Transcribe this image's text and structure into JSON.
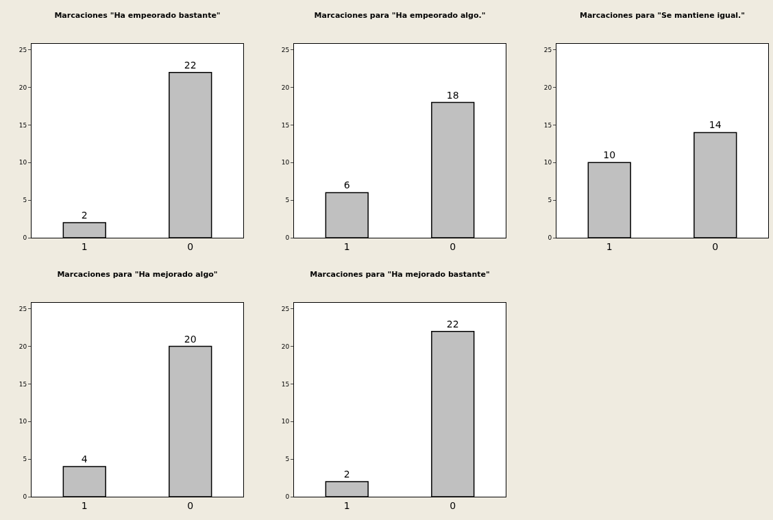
{
  "chart_data": [
    {
      "type": "bar",
      "title": "Marcaciones \"Ha empeorado bastante\"",
      "categories": [
        "1",
        "0"
      ],
      "values": [
        2,
        22
      ],
      "color": "#c0c0c0",
      "ylim": [
        0,
        25.8
      ],
      "yticks": [
        0,
        5,
        10,
        15,
        20,
        25
      ],
      "data_labels": true,
      "grid": false
    },
    {
      "type": "bar",
      "title": "Marcaciones para \"Ha empeorado algo.\"",
      "categories": [
        "1",
        "0"
      ],
      "values": [
        6,
        18
      ],
      "color": "#c0c0c0",
      "ylim": [
        0,
        25.8
      ],
      "yticks": [
        0,
        5,
        10,
        15,
        20,
        25
      ],
      "data_labels": true,
      "grid": false
    },
    {
      "type": "bar",
      "title": "Marcaciones para \"Se mantiene igual.\"",
      "categories": [
        "1",
        "0"
      ],
      "values": [
        10,
        14
      ],
      "color": "#c0c0c0",
      "ylim": [
        0,
        25.8
      ],
      "yticks": [
        0,
        5,
        10,
        15,
        20,
        25
      ],
      "data_labels": true,
      "grid": false
    },
    {
      "type": "bar",
      "title": "Marcaciones para \"Ha mejorado algo\"",
      "categories": [
        "1",
        "0"
      ],
      "values": [
        4,
        20
      ],
      "color": "#c0c0c0",
      "ylim": [
        0,
        25.8
      ],
      "yticks": [
        0,
        5,
        10,
        15,
        20,
        25
      ],
      "data_labels": true,
      "grid": false
    },
    {
      "type": "bar",
      "title": "Marcaciones para \"Ha mejorado bastante\"",
      "categories": [
        "1",
        "0"
      ],
      "values": [
        2,
        22
      ],
      "color": "#c0c0c0",
      "ylim": [
        0,
        25.8
      ],
      "yticks": [
        0,
        5,
        10,
        15,
        20,
        25
      ],
      "data_labels": true,
      "grid": false
    }
  ]
}
